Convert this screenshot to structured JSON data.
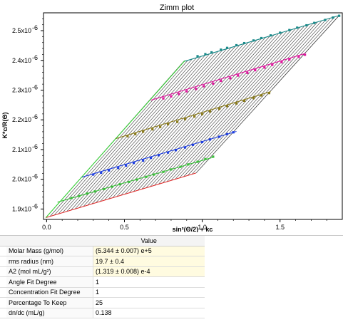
{
  "chart_data": {
    "type": "scatter",
    "title": "Zimm plot",
    "xlabel": "sin²(Θ/2) + kc",
    "ylabel": "K*c/R(Θ)",
    "xlim": [
      -0.02,
      1.9
    ],
    "ylim": [
      1.865e-06,
      2.56e-06
    ],
    "x_ticks": [
      0.0,
      0.5,
      1.0,
      1.5
    ],
    "x_tick_labels": [
      "0.0",
      "0.5",
      "1.0",
      "1.5"
    ],
    "y_ticks": [
      1.9e-06,
      2e-06,
      2.1e-06,
      2.2e-06,
      2.3e-06,
      2.4e-06,
      2.5e-06
    ],
    "y_tick_mantissas": [
      "1.9",
      "2.0",
      "2.1",
      "2.2",
      "2.3",
      "2.4",
      "2.5"
    ],
    "y_tick_multiplier": "x10",
    "y_tick_exponent": "-6",
    "grid": false,
    "series": [
      {
        "color": "#1a8a8a",
        "fit": [
          [
            0.88,
            2.396e-06
          ],
          [
            1.88,
            2.551e-06
          ]
        ],
        "x": [
          0.97,
          1.02,
          1.06,
          1.12,
          1.16,
          1.22,
          1.27,
          1.33,
          1.38,
          1.44,
          1.5,
          1.56,
          1.61,
          1.67,
          1.72,
          1.79,
          1.84,
          1.88
        ],
        "y": [
          2.414e-06,
          2.421e-06,
          2.427e-06,
          2.436e-06,
          2.442e-06,
          2.451e-06,
          2.458e-06,
          2.467e-06,
          2.475e-06,
          2.484e-06,
          2.493e-06,
          2.502e-06,
          2.51e-06,
          2.518e-06,
          2.526e-06,
          2.536e-06,
          2.544e-06,
          2.55e-06
        ]
      },
      {
        "color": "#e0169e",
        "fit": [
          [
            0.67,
            2.266e-06
          ],
          [
            1.66,
            2.423e-06
          ]
        ],
        "x": [
          0.75,
          0.8,
          0.85,
          0.9,
          0.96,
          1.01,
          1.07,
          1.12,
          1.18,
          1.23,
          1.29,
          1.34,
          1.4,
          1.45,
          1.51,
          1.56,
          1.62,
          1.66
        ],
        "y": [
          2.272e-06,
          2.279e-06,
          2.287e-06,
          2.296e-06,
          2.304e-06,
          2.313e-06,
          2.322e-06,
          2.331e-06,
          2.34e-06,
          2.349e-06,
          2.358e-06,
          2.367e-06,
          2.376e-06,
          2.385e-06,
          2.394e-06,
          2.403e-06,
          2.412e-06,
          2.419e-06
        ]
      },
      {
        "color": "#8a7a1a",
        "fit": [
          [
            0.44,
            2.136e-06
          ],
          [
            1.44,
            2.295e-06
          ]
        ],
        "x": [
          0.52,
          0.57,
          0.62,
          0.68,
          0.73,
          0.78,
          0.84,
          0.89,
          0.95,
          1.0,
          1.05,
          1.11,
          1.16,
          1.22,
          1.27,
          1.33,
          1.38,
          1.43
        ],
        "y": [
          2.145e-06,
          2.152e-06,
          2.16e-06,
          2.168e-06,
          2.176e-06,
          2.185e-06,
          2.193e-06,
          2.202e-06,
          2.211e-06,
          2.219e-06,
          2.228e-06,
          2.237e-06,
          2.246e-06,
          2.255e-06,
          2.264e-06,
          2.273e-06,
          2.282e-06,
          2.29e-06
        ]
      },
      {
        "color": "#1f3fe0",
        "fit": [
          [
            0.22,
            2.006e-06
          ],
          [
            1.22,
            2.161e-06
          ]
        ],
        "x": [
          0.3,
          0.35,
          0.4,
          0.46,
          0.51,
          0.56,
          0.62,
          0.67,
          0.72,
          0.78,
          0.83,
          0.89,
          0.94,
          1.0,
          1.05,
          1.11,
          1.16,
          1.2
        ],
        "y": [
          2.016e-06,
          2.022e-06,
          2.03e-06,
          2.038e-06,
          2.046e-06,
          2.055e-06,
          2.063e-06,
          2.072e-06,
          2.081e-06,
          2.09e-06,
          2.098e-06,
          2.107e-06,
          2.116e-06,
          2.125e-06,
          2.134e-06,
          2.143e-06,
          2.152e-06,
          2.158e-06
        ]
      },
      {
        "color": "#3cbf3c",
        "fit": [
          [
            0.07,
            1.923e-06
          ],
          [
            1.07,
            2.074e-06
          ]
        ],
        "x": [
          0.16,
          0.21,
          0.26,
          0.31,
          0.37,
          0.42,
          0.47,
          0.53,
          0.58,
          0.64,
          0.69,
          0.75,
          0.8,
          0.86,
          0.91,
          0.97,
          1.02,
          1.07
        ],
        "y": [
          1.937e-06,
          1.944e-06,
          1.952e-06,
          1.959e-06,
          1.967e-06,
          1.975e-06,
          1.983e-06,
          1.991e-06,
          1.999e-06,
          2.008e-06,
          2.016e-06,
          2.025e-06,
          2.033e-06,
          2.042e-06,
          2.05e-06,
          2.059e-06,
          2.068e-06,
          2.076e-06
        ]
      },
      {
        "color": "#e03030",
        "fit": [
          [
            -0.005,
            1.871e-06
          ],
          [
            0.96,
            2.021e-06
          ]
        ]
      },
      {
        "color": "#38d238",
        "fit": [
          [
            -0.005,
            1.871e-06
          ],
          [
            0.89,
            2.4e-06
          ]
        ]
      }
    ]
  },
  "results": {
    "header": "Value",
    "rows": [
      {
        "name": "Molar Mass (g/mol)",
        "value": "(5.344 ± 0.007) e+5"
      },
      {
        "name": "rms radius (nm)",
        "value": "19.7 ± 0.4"
      },
      {
        "name": "A2 (mol mL/g²)",
        "value": "(1.319 ± 0.008) e-4"
      },
      {
        "name": "Angle Fit Degree",
        "value": "1"
      },
      {
        "name": "Concentration Fit Degree",
        "value": "1"
      },
      {
        "name": "Percentage To Keep",
        "value": "25"
      },
      {
        "name": "dn/dc (mL/g)",
        "value": "0.138"
      }
    ]
  }
}
